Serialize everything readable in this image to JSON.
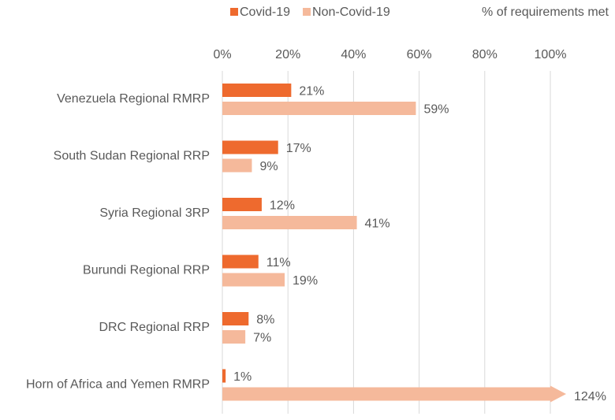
{
  "chart_data": {
    "type": "bar",
    "orientation": "horizontal",
    "x_axis_title": "% of requirements met",
    "categories": [
      "Venezuela Regional RMRP",
      "South Sudan Regional RRP",
      "Syria Regional 3RP",
      "Burundi Regional RRP",
      "DRC Regional RRP",
      "Horn of Africa and Yemen RMRP"
    ],
    "series": [
      {
        "name": "Covid-19",
        "color": "#ee6a2e",
        "values": [
          21,
          17,
          12,
          11,
          8,
          1
        ],
        "value_labels": [
          "21%",
          "17%",
          "12%",
          "11%",
          "8%",
          "1%"
        ]
      },
      {
        "name": "Non-Covid-19",
        "color": "#f5b99b",
        "values": [
          59,
          9,
          41,
          19,
          7,
          124
        ],
        "value_labels": [
          "59%",
          "9%",
          "41%",
          "19%",
          "7%",
          "124%"
        ]
      }
    ],
    "xlim": [
      0,
      100
    ],
    "xticks": [
      {
        "value": 0,
        "label": "0%"
      },
      {
        "value": 20,
        "label": "20%"
      },
      {
        "value": 40,
        "label": "40%"
      },
      {
        "value": 60,
        "label": "60%"
      },
      {
        "value": 80,
        "label": "80%"
      },
      {
        "value": 100,
        "label": "100%"
      }
    ],
    "grid": true,
    "legend": "top"
  }
}
